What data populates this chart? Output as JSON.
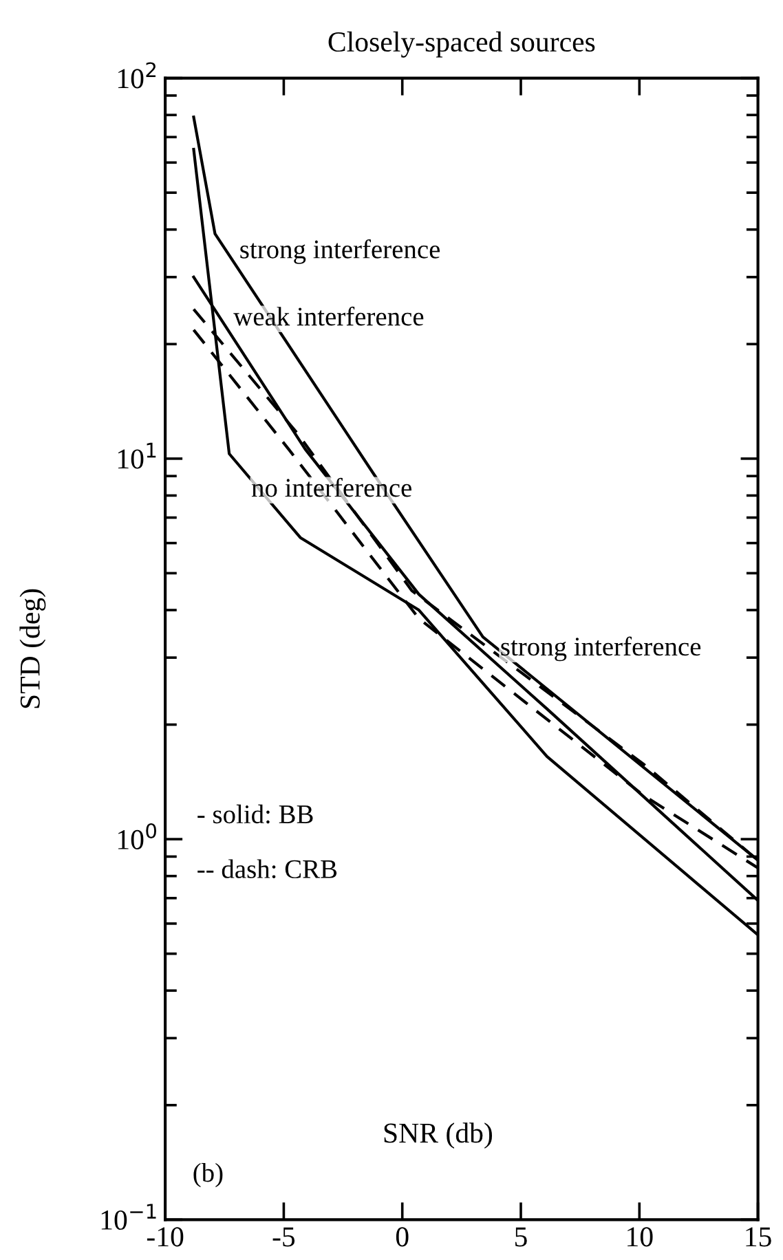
{
  "chart_data": {
    "type": "line",
    "title": "Closely-spaced sources",
    "xlabel": "SNR (db)",
    "ylabel": "STD (deg)",
    "log": "y",
    "xlim": [
      -10,
      15
    ],
    "xticks": [
      -10,
      -5,
      0,
      5,
      10,
      15
    ],
    "ylim": [
      0.1,
      100
    ],
    "yticks": [
      {
        "value": 0.1,
        "label": "10$^{−1}$"
      },
      {
        "value": 1,
        "label": "10$^{0}$"
      },
      {
        "value": 10,
        "label": "10$^{1}$"
      },
      {
        "value": 100,
        "label": "10$^{2}$"
      }
    ],
    "grid": false,
    "legend": false,
    "marker": "none",
    "series": [
      {
        "color": "#000000",
        "line_style": "solid",
        "x": [
          -8.8,
          -7.9,
          -1.2,
          3.4,
          15
        ],
        "values": [
          79,
          39,
          9.1,
          3.4,
          0.88
        ]
      },
      {
        "color": "#000000",
        "line_style": "solid",
        "x": [
          -8.8,
          -4.1,
          0.7,
          6.1,
          15
        ],
        "values": [
          30,
          10.6,
          4.4,
          2.2,
          0.69
        ]
      },
      {
        "color": "#000000",
        "line_style": "solid",
        "x": [
          -8.8,
          -7.3,
          -4.3,
          0.7,
          6.1,
          15
        ],
        "values": [
          65,
          10.3,
          6.2,
          4.0,
          1.65,
          0.56
        ]
      },
      {
        "color": "#000000",
        "line_style": "dashed",
        "x": [
          -8.8,
          -4.4,
          0.4,
          10.2,
          15
        ],
        "values": [
          24.7,
          11.6,
          4.5,
          1.57,
          0.88
        ]
      },
      {
        "color": "#000000",
        "line_style": "dashed",
        "x": [
          -8.8,
          -4.8,
          0.7,
          10.2,
          15
        ],
        "values": [
          21.8,
          10.6,
          3.8,
          1.3,
          0.84
        ]
      }
    ],
    "annotations": [
      "strong interference",
      "weak interference",
      "no interference",
      "strong interference",
      "- solid: BB",
      "-- dash: CRB",
      "(b)"
    ]
  }
}
